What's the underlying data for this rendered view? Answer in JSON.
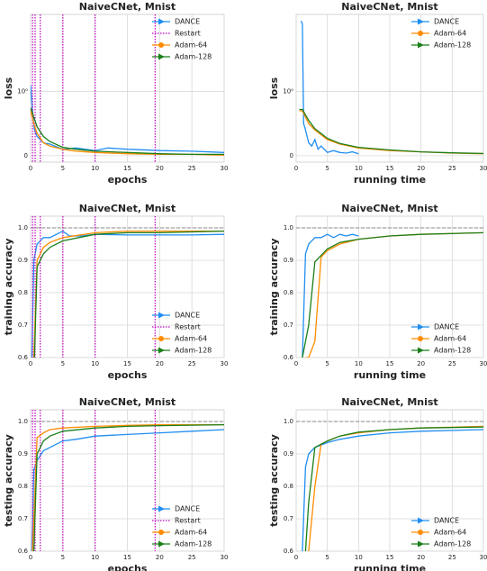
{
  "chart_data": [
    {
      "type": "line",
      "title": "NaiveCNet,  Mnist",
      "xlabel": "epochs",
      "ylabel": "loss",
      "xlim": [
        0,
        30
      ],
      "ylim": [
        -0.1,
        2.2
      ],
      "xticks": [
        0,
        5,
        10,
        15,
        20,
        25,
        30
      ],
      "yticks": [
        0,
        {
          "value": 1,
          "label": "10⁰"
        }
      ],
      "grid": true,
      "legend": "upper right",
      "series": [
        {
          "name": "DANCE",
          "color": "#1f8ef1",
          "x": [
            0,
            0.3,
            0.6,
            1,
            1.5,
            2,
            3,
            5,
            7,
            10,
            12,
            15,
            20,
            25,
            30
          ],
          "values": [
            1.1,
            0.7,
            0.4,
            0.3,
            0.25,
            0.2,
            0.18,
            0.1,
            0.12,
            0.08,
            0.12,
            0.1,
            0.08,
            0.07,
            0.05
          ]
        },
        {
          "name": "Restart",
          "color": "#c000c0",
          "x": [
            0.3,
            0.7,
            1.5,
            5,
            10,
            19.3
          ]
        },
        {
          "name": "Adam-64",
          "color": "#ff8c00",
          "x": [
            0,
            0.5,
            1,
            2,
            3,
            5,
            7,
            10,
            15,
            20,
            25,
            30
          ],
          "values": [
            0.7,
            0.5,
            0.35,
            0.2,
            0.15,
            0.1,
            0.07,
            0.05,
            0.03,
            0.02,
            0.02,
            0.01
          ]
        },
        {
          "name": "Adam-128",
          "color": "#1a7f1a",
          "x": [
            0,
            0.5,
            1,
            2,
            3,
            5,
            7,
            10,
            15,
            20,
            25,
            30
          ],
          "values": [
            0.75,
            0.6,
            0.45,
            0.3,
            0.22,
            0.13,
            0.1,
            0.07,
            0.05,
            0.03,
            0.02,
            0.02
          ]
        }
      ]
    },
    {
      "type": "line",
      "title": "NaiveCNet,  Mnist",
      "xlabel": "running time",
      "ylabel": "loss",
      "xlim": [
        0,
        30
      ],
      "ylim": [
        -0.1,
        2.2
      ],
      "xticks": [
        0,
        5,
        10,
        15,
        20,
        25,
        30
      ],
      "yticks": [
        0,
        {
          "value": 1,
          "label": "10⁰"
        }
      ],
      "grid": true,
      "legend": "upper right",
      "series": [
        {
          "name": "DANCE",
          "color": "#1f8ef1",
          "x": [
            0.8,
            1,
            1.2,
            1.5,
            2,
            2.5,
            3,
            3.5,
            4,
            5,
            6,
            7,
            8,
            9,
            10
          ],
          "values": [
            2.1,
            2.05,
            0.5,
            0.4,
            0.2,
            0.15,
            0.25,
            0.1,
            0.15,
            0.05,
            0.08,
            0.05,
            0.04,
            0.06,
            0.03
          ]
        },
        {
          "name": "Adam-64",
          "color": "#ff8c00",
          "x": [
            0.5,
            1,
            2,
            3,
            5,
            7,
            10,
            15,
            20,
            25,
            30
          ],
          "values": [
            0.7,
            0.7,
            0.5,
            0.4,
            0.25,
            0.18,
            0.12,
            0.08,
            0.06,
            0.04,
            0.03
          ]
        },
        {
          "name": "Adam-128",
          "color": "#1a7f1a",
          "x": [
            0.5,
            1,
            2,
            3,
            5,
            7,
            10,
            15,
            20,
            25,
            30
          ],
          "values": [
            0.72,
            0.72,
            0.55,
            0.42,
            0.27,
            0.19,
            0.13,
            0.09,
            0.06,
            0.045,
            0.035
          ]
        }
      ]
    },
    {
      "type": "line",
      "title": "NaiveCNet,  Mnist",
      "xlabel": "epochs",
      "ylabel": "training accuracy",
      "xlim": [
        0,
        30
      ],
      "ylim": [
        0.6,
        1.036
      ],
      "xticks": [
        0,
        5,
        10,
        15,
        20,
        25,
        30
      ],
      "yticks": [
        0.6,
        0.7,
        0.8,
        0.9,
        {
          "value": 1,
          "label": "1.0"
        }
      ],
      "hline": 1,
      "grid": true,
      "legend": "lower right",
      "series": [
        {
          "name": "DANCE",
          "color": "#1f8ef1",
          "x": [
            0.2,
            0.5,
            1,
            1.5,
            2,
            3,
            4,
            5,
            6,
            8,
            10,
            15,
            20,
            25,
            30
          ],
          "values": [
            0.6,
            0.9,
            0.95,
            0.96,
            0.97,
            0.97,
            0.98,
            0.99,
            0.975,
            0.975,
            0.98,
            0.978,
            0.978,
            0.978,
            0.98
          ]
        },
        {
          "name": "Restart",
          "color": "#c000c0",
          "x": [
            0.3,
            0.7,
            1.5,
            5,
            10,
            19.3
          ]
        },
        {
          "name": "Adam-64",
          "color": "#ff8c00",
          "x": [
            0.5,
            1,
            2,
            3,
            5,
            10,
            15,
            20,
            30
          ],
          "values": [
            0.6,
            0.9,
            0.94,
            0.955,
            0.97,
            0.985,
            0.99,
            0.99,
            0.99
          ]
        },
        {
          "name": "Adam-128",
          "color": "#1a7f1a",
          "x": [
            0.6,
            1,
            2,
            3,
            5,
            10,
            15,
            20,
            30
          ],
          "values": [
            0.6,
            0.88,
            0.92,
            0.94,
            0.96,
            0.98,
            0.985,
            0.985,
            0.99
          ]
        }
      ]
    },
    {
      "type": "line",
      "title": "NaiveCNet,  Mnist",
      "xlabel": "running time",
      "ylabel": "training accuracy",
      "xlim": [
        0,
        30
      ],
      "ylim": [
        0.6,
        1.036
      ],
      "xticks": [
        0,
        5,
        10,
        15,
        20,
        25,
        30
      ],
      "yticks": [
        0.6,
        0.7,
        0.8,
        0.9,
        {
          "value": 1,
          "label": "1.0"
        }
      ],
      "hline": 1,
      "grid": true,
      "legend": "lower right",
      "series": [
        {
          "name": "DANCE",
          "color": "#1f8ef1",
          "x": [
            1,
            1.5,
            2,
            2.5,
            3,
            4,
            5,
            6,
            7,
            8,
            9,
            10
          ],
          "values": [
            0.6,
            0.92,
            0.95,
            0.96,
            0.97,
            0.97,
            0.98,
            0.97,
            0.98,
            0.975,
            0.98,
            0.975
          ]
        },
        {
          "name": "Adam-64",
          "color": "#ff8c00",
          "x": [
            1.5,
            2,
            3,
            4,
            5,
            7,
            10,
            15,
            20,
            30
          ],
          "values": [
            0.6,
            0.6,
            0.65,
            0.91,
            0.93,
            0.95,
            0.965,
            0.975,
            0.98,
            0.985
          ]
        },
        {
          "name": "Adam-128",
          "color": "#1a7f1a",
          "x": [
            1,
            2,
            3,
            4,
            5,
            7,
            10,
            15,
            20,
            30
          ],
          "values": [
            0.6,
            0.7,
            0.895,
            0.915,
            0.935,
            0.955,
            0.965,
            0.975,
            0.98,
            0.985
          ]
        }
      ]
    },
    {
      "type": "line",
      "title": "NaiveCNet,  Mnist",
      "xlabel": "epochs",
      "ylabel": "testing accuracy",
      "xlim": [
        0,
        30
      ],
      "ylim": [
        0.6,
        1.036
      ],
      "xticks": [
        0,
        5,
        10,
        15,
        20,
        25,
        30
      ],
      "yticks": [
        0.6,
        0.7,
        0.8,
        0.9,
        {
          "value": 1,
          "label": "1.0"
        }
      ],
      "hline": 1,
      "grid": true,
      "legend": "lower right",
      "series": [
        {
          "name": "DANCE",
          "color": "#1f8ef1",
          "x": [
            0.2,
            0.5,
            1,
            2,
            3,
            5,
            7,
            10,
            15,
            20,
            25,
            30
          ],
          "values": [
            0.6,
            0.85,
            0.88,
            0.91,
            0.92,
            0.94,
            0.945,
            0.955,
            0.96,
            0.965,
            0.97,
            0.975
          ]
        },
        {
          "name": "Restart",
          "color": "#c000c0",
          "x": [
            0.3,
            0.7,
            1.5,
            5,
            10,
            19.3
          ]
        },
        {
          "name": "Adam-64",
          "color": "#ff8c00",
          "x": [
            0.3,
            1,
            2,
            3,
            5,
            10,
            15,
            20,
            30
          ],
          "values": [
            0.6,
            0.95,
            0.965,
            0.975,
            0.98,
            0.985,
            0.988,
            0.99,
            0.99
          ]
        },
        {
          "name": "Adam-128",
          "color": "#1a7f1a",
          "x": [
            0.5,
            1,
            2,
            3,
            5,
            10,
            15,
            20,
            30
          ],
          "values": [
            0.6,
            0.9,
            0.94,
            0.955,
            0.97,
            0.98,
            0.985,
            0.987,
            0.99
          ]
        }
      ]
    },
    {
      "type": "line",
      "title": "NaiveCNet,  Mnist",
      "xlabel": "running time",
      "ylabel": "testing accuracy",
      "xlim": [
        0,
        30
      ],
      "ylim": [
        0.6,
        1.036
      ],
      "xticks": [
        0,
        5,
        10,
        15,
        20,
        25,
        30
      ],
      "yticks": [
        0.6,
        0.7,
        0.8,
        0.9,
        {
          "value": 1,
          "label": "1.0"
        }
      ],
      "hline": 1,
      "grid": true,
      "legend": "lower right",
      "series": [
        {
          "name": "DANCE",
          "color": "#1f8ef1",
          "x": [
            1,
            1.5,
            2,
            3,
            5,
            7,
            10,
            15,
            20,
            30
          ],
          "values": [
            0.6,
            0.86,
            0.9,
            0.92,
            0.935,
            0.945,
            0.955,
            0.965,
            0.97,
            0.975
          ]
        },
        {
          "name": "Adam-64",
          "color": "#ff8c00",
          "x": [
            2,
            3,
            4,
            5,
            7,
            10,
            15,
            20,
            30
          ],
          "values": [
            0.6,
            0.8,
            0.93,
            0.94,
            0.955,
            0.965,
            0.975,
            0.98,
            0.985
          ]
        },
        {
          "name": "Adam-128",
          "color": "#1a7f1a",
          "x": [
            1.5,
            2,
            3,
            4,
            5,
            7,
            10,
            15,
            20,
            30
          ],
          "values": [
            0.6,
            0.75,
            0.92,
            0.93,
            0.94,
            0.955,
            0.967,
            0.975,
            0.98,
            0.983
          ]
        }
      ]
    }
  ]
}
